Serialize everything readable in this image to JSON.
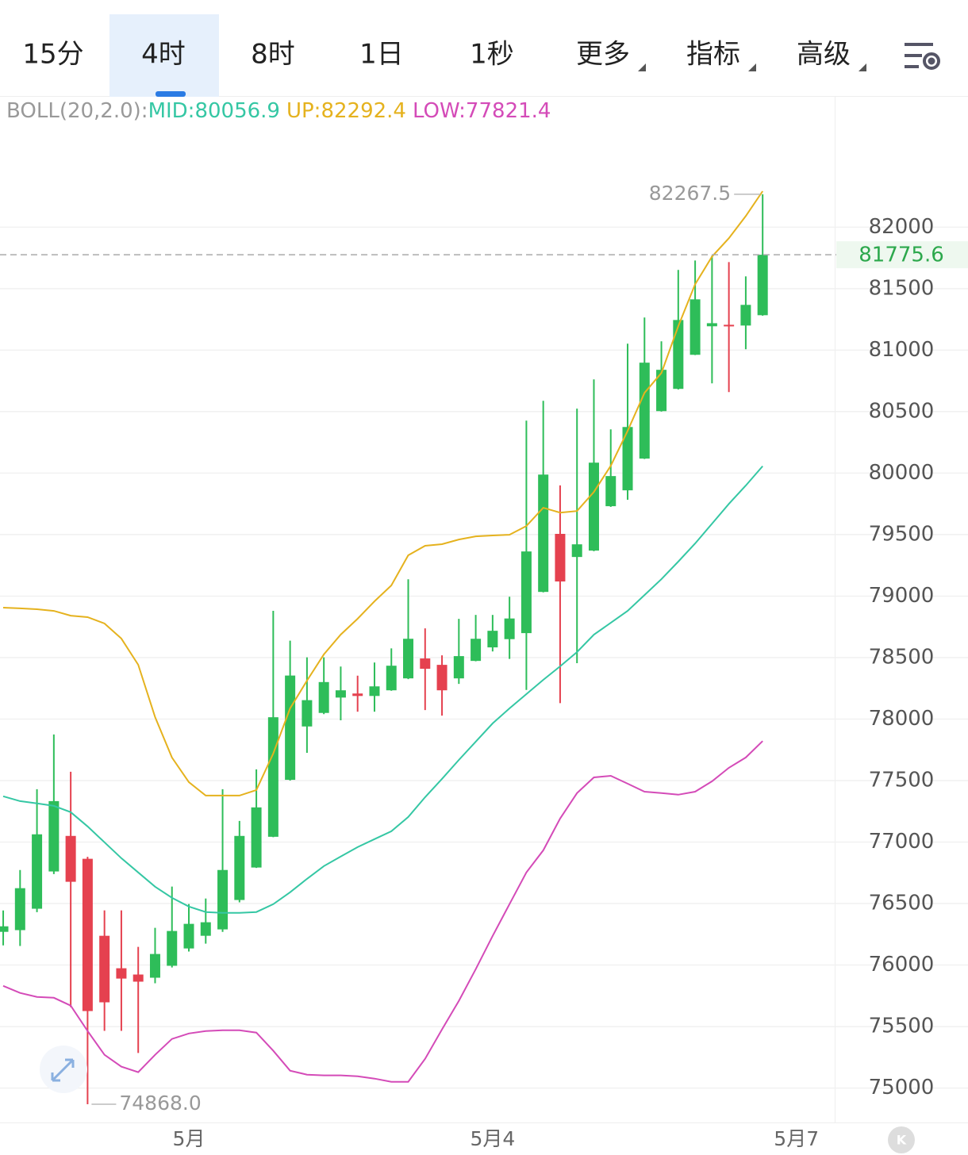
{
  "tabs": [
    "15分",
    "4时",
    "8时",
    "1日",
    "1秒",
    "更多",
    "指标",
    "高级"
  ],
  "active_tab": 1,
  "chart_data": {
    "type": "candlestick",
    "indicator_label": "BOLL(20,2.0):",
    "up_color": "#2ebd59",
    "down_color": "#e5414f",
    "xlim": [
      -0.19,
      49.27
    ],
    "xticks": [
      {
        "value": 11,
        "label": "5月"
      },
      {
        "value": 29,
        "label": "5月4"
      },
      {
        "value": 47,
        "label": "5月7"
      }
    ],
    "ylim": [
      74720,
      83060
    ],
    "yticks": [
      75000,
      75500,
      76000,
      76500,
      77000,
      77500,
      78000,
      78500,
      79000,
      79500,
      80000,
      80500,
      81000,
      81500,
      82000
    ],
    "grid": true,
    "open": [
      76270,
      76284,
      76458,
      76761,
      77050,
      76864,
      76238,
      75974,
      75923,
      75897,
      75994,
      76135,
      76238,
      76290,
      76529,
      76793,
      77043,
      77506,
      77940,
      78050,
      78175,
      78208,
      78188,
      78234,
      78331,
      78493,
      78441,
      78331,
      78473,
      78583,
      78650,
      78699,
      79034,
      79506,
      79318,
      79370,
      79731,
      79860,
      80118,
      80504,
      80685,
      80962,
      81194,
      81206,
      81200,
      81284
    ],
    "high": [
      76444,
      76773,
      77430,
      77875,
      77572,
      76880,
      76445,
      76445,
      76148,
      76303,
      76638,
      76496,
      76541,
      77430,
      77172,
      77591,
      78880,
      78638,
      78502,
      78502,
      78427,
      78353,
      78460,
      78575,
      79137,
      78738,
      78518,
      78815,
      78847,
      78847,
      78995,
      80427,
      80588,
      79900,
      80524,
      80762,
      80356,
      81052,
      81265,
      81072,
      81652,
      81729,
      81768,
      81716,
      81600,
      82267.5
    ],
    "low": [
      76160,
      76155,
      76430,
      76740,
      75658,
      74868,
      75465,
      75465,
      75285,
      75852,
      75980,
      76110,
      76174,
      76270,
      76510,
      76790,
      77040,
      77500,
      77726,
      78040,
      77990,
      78060,
      78060,
      78230,
      78325,
      78073,
      78028,
      78286,
      78470,
      78550,
      78489,
      78237,
      79030,
      78130,
      78455,
      79365,
      79725,
      79783,
      80115,
      80500,
      80680,
      80960,
      80730,
      80659,
      81007,
      81280
    ],
    "close": [
      76315,
      76625,
      77063,
      77333,
      76677,
      75626,
      75697,
      75890,
      75865,
      76090,
      76277,
      76335,
      76348,
      76773,
      77050,
      77282,
      78015,
      78354,
      78154,
      78301,
      78234,
      78188,
      78266,
      78434,
      78653,
      78409,
      78234,
      78512,
      78653,
      78718,
      78818,
      79363,
      79988,
      79119,
      79421,
      80085,
      79976,
      80375,
      80898,
      80840,
      81245,
      81413,
      81219,
      81194,
      81368,
      81775.6
    ],
    "annotations": {
      "low_label": "74868.0"
    },
    "series": [
      {
        "name": "MID:80056.9",
        "color": "#35c7a4",
        "values": [
          77372,
          77333,
          77314,
          77294,
          77243,
          77127,
          76998,
          76869,
          76753,
          76637,
          76547,
          76476,
          76431,
          76424,
          76424,
          76431,
          76495,
          76592,
          76701,
          76805,
          76882,
          76959,
          77024,
          77088,
          77204,
          77365,
          77514,
          77668,
          77817,
          77965,
          78087,
          78203,
          78319,
          78429,
          78545,
          78687,
          78783,
          78880,
          79009,
          79138,
          79280,
          79428,
          79589,
          79750,
          79899,
          80056.9
        ]
      },
      {
        "name": "UP:82292.4",
        "color": "#e5b21e",
        "values": [
          78906,
          78900,
          78893,
          78880,
          78841,
          78829,
          78777,
          78655,
          78442,
          78016,
          77688,
          77488,
          77378,
          77378,
          77378,
          77423,
          77720,
          78087,
          78313,
          78526,
          78687,
          78816,
          78958,
          79087,
          79332,
          79409,
          79422,
          79460,
          79486,
          79493,
          79499,
          79570,
          79718,
          79679,
          79692,
          79847,
          80060,
          80343,
          80653,
          80814,
          81194,
          81536,
          81761,
          81910,
          82090,
          82292.4
        ]
      },
      {
        "name": "LOW:77821.4",
        "color": "#d44bb8",
        "values": [
          75831,
          75773,
          75741,
          75734,
          75670,
          75464,
          75270,
          75174,
          75129,
          75270,
          75399,
          75444,
          75464,
          75470,
          75470,
          75451,
          75303,
          75141,
          75109,
          75103,
          75103,
          75096,
          75077,
          75051,
          75051,
          75238,
          75477,
          75709,
          75967,
          76237,
          76495,
          76753,
          76933,
          77191,
          77398,
          77526,
          77539,
          77475,
          77410,
          77398,
          77385,
          77410,
          77494,
          77604,
          77688,
          77821.4
        ]
      }
    ]
  }
}
